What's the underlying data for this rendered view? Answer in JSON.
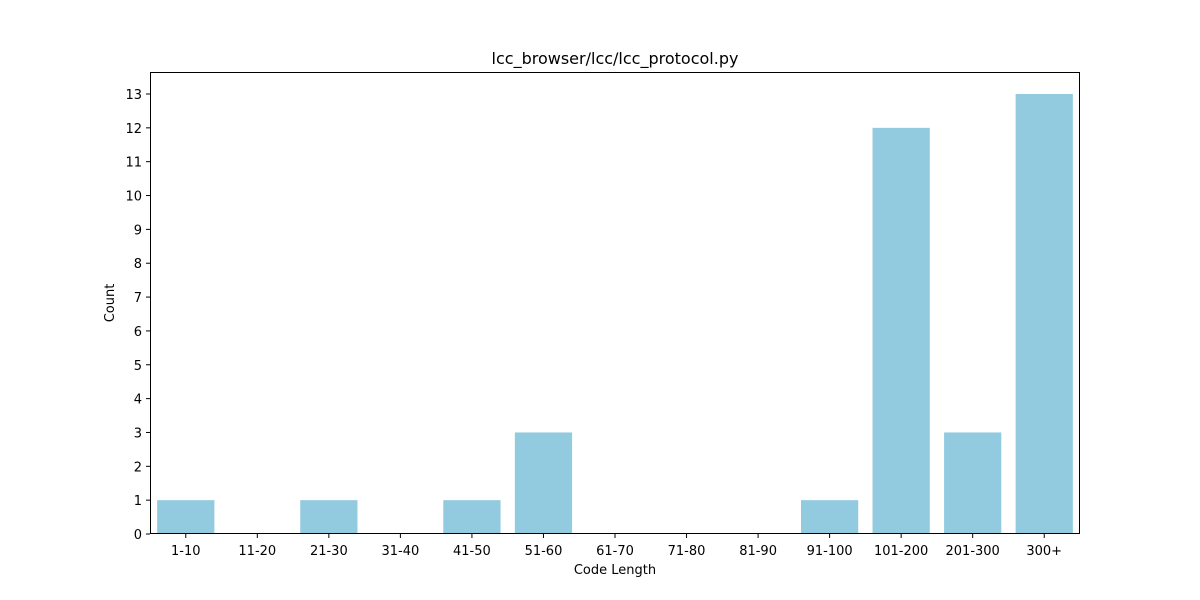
{
  "chart_data": {
    "type": "bar",
    "title": "lcc_browser/lcc/lcc_protocol.py",
    "xlabel": "Code Length",
    "ylabel": "Count",
    "categories": [
      "1-10",
      "11-20",
      "21-30",
      "31-40",
      "41-50",
      "51-60",
      "61-70",
      "71-80",
      "81-90",
      "91-100",
      "101-200",
      "201-300",
      "300+"
    ],
    "values": [
      1,
      0,
      1,
      0,
      1,
      3,
      0,
      0,
      0,
      1,
      12,
      3,
      13
    ],
    "ylim": [
      0,
      13.65
    ],
    "yticks": [
      0,
      1,
      2,
      3,
      4,
      5,
      6,
      7,
      8,
      9,
      10,
      11,
      12,
      13
    ],
    "grid": false,
    "bar_color": "#92cadf"
  }
}
